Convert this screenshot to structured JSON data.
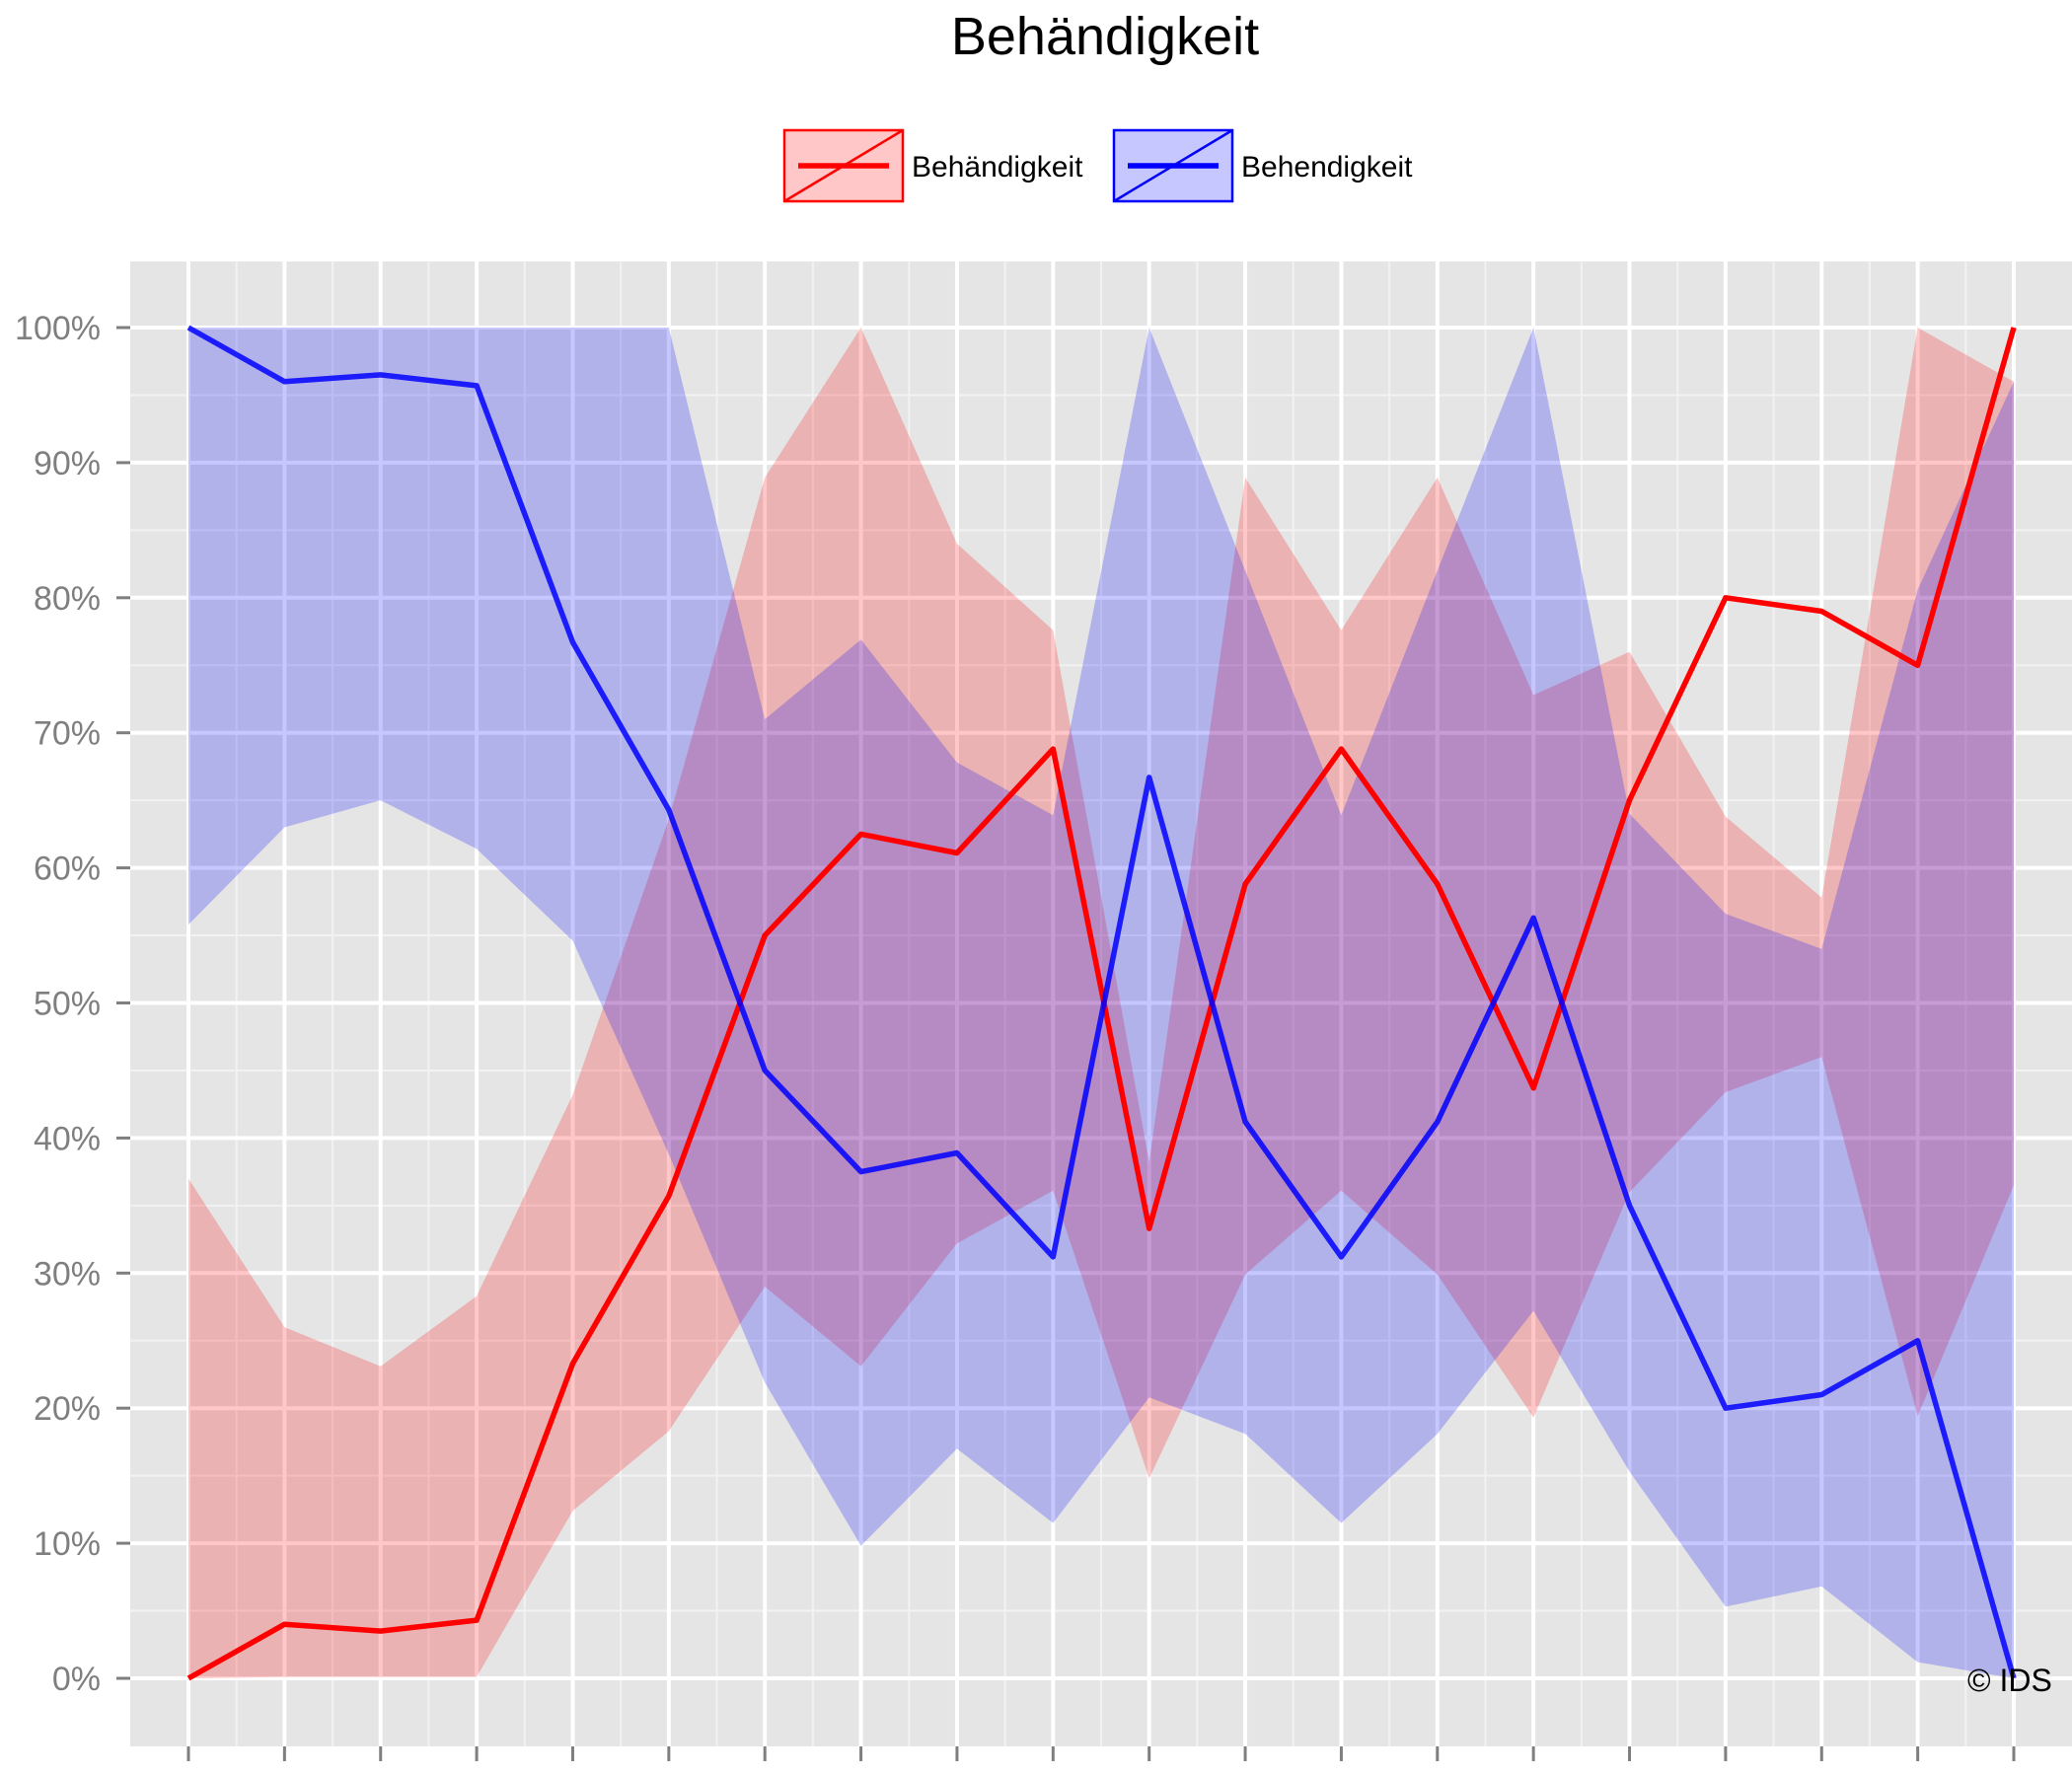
{
  "chart_data": {
    "type": "line",
    "title": "Behändigkeit",
    "xlabel": "",
    "ylabel": "",
    "ylim": [
      0,
      1
    ],
    "y_ticks": [
      0,
      0.1,
      0.2,
      0.3,
      0.4,
      0.5,
      0.6,
      0.7,
      0.8,
      0.9,
      1.0
    ],
    "y_tick_labels": [
      "0%",
      "10%",
      "20%",
      "30%",
      "40%",
      "50%",
      "60%",
      "70%",
      "80%",
      "90%",
      "100%"
    ],
    "x_count": 20,
    "grid": true,
    "legend_position": "top",
    "credit": "© IDS",
    "series": [
      {
        "name": "Behändigkeit",
        "color": "#ff0000",
        "values": [
          0.0,
          0.04,
          0.035,
          0.043,
          0.233,
          0.357,
          0.55,
          0.625,
          0.611,
          0.688,
          0.333,
          0.588,
          0.688,
          0.588,
          0.437,
          0.65,
          0.8,
          0.79,
          0.75,
          1.0
        ],
        "lower": [
          0.0,
          0.001,
          0.001,
          0.001,
          0.124,
          0.183,
          0.29,
          0.231,
          0.322,
          0.361,
          0.148,
          0.299,
          0.361,
          0.299,
          0.193,
          0.36,
          0.434,
          0.46,
          0.194,
          0.365
        ],
        "upper": [
          0.37,
          0.26,
          0.231,
          0.283,
          0.432,
          0.636,
          0.889,
          1.0,
          0.84,
          0.776,
          0.382,
          0.889,
          0.776,
          0.889,
          0.728,
          0.76,
          0.638,
          0.578,
          1.0,
          0.96
        ]
      },
      {
        "name": "Behendigkeit",
        "color": "#0000ff",
        "values": [
          1.0,
          0.96,
          0.965,
          0.957,
          0.767,
          0.643,
          0.45,
          0.375,
          0.389,
          0.312,
          0.667,
          0.412,
          0.312,
          0.412,
          0.563,
          0.35,
          0.2,
          0.21,
          0.25,
          0.0
        ],
        "lower": [
          0.558,
          0.63,
          0.65,
          0.614,
          0.546,
          0.388,
          0.219,
          0.098,
          0.17,
          0.115,
          0.208,
          0.181,
          0.115,
          0.181,
          0.272,
          0.153,
          0.053,
          0.068,
          0.012,
          0.0
        ],
        "upper": [
          1.0,
          1.0,
          1.0,
          1.0,
          1.0,
          1.0,
          0.71,
          0.769,
          0.678,
          0.639,
          1.0,
          0.82,
          0.639,
          0.82,
          1.0,
          0.64,
          0.566,
          0.54,
          0.806,
          0.96
        ]
      }
    ]
  }
}
